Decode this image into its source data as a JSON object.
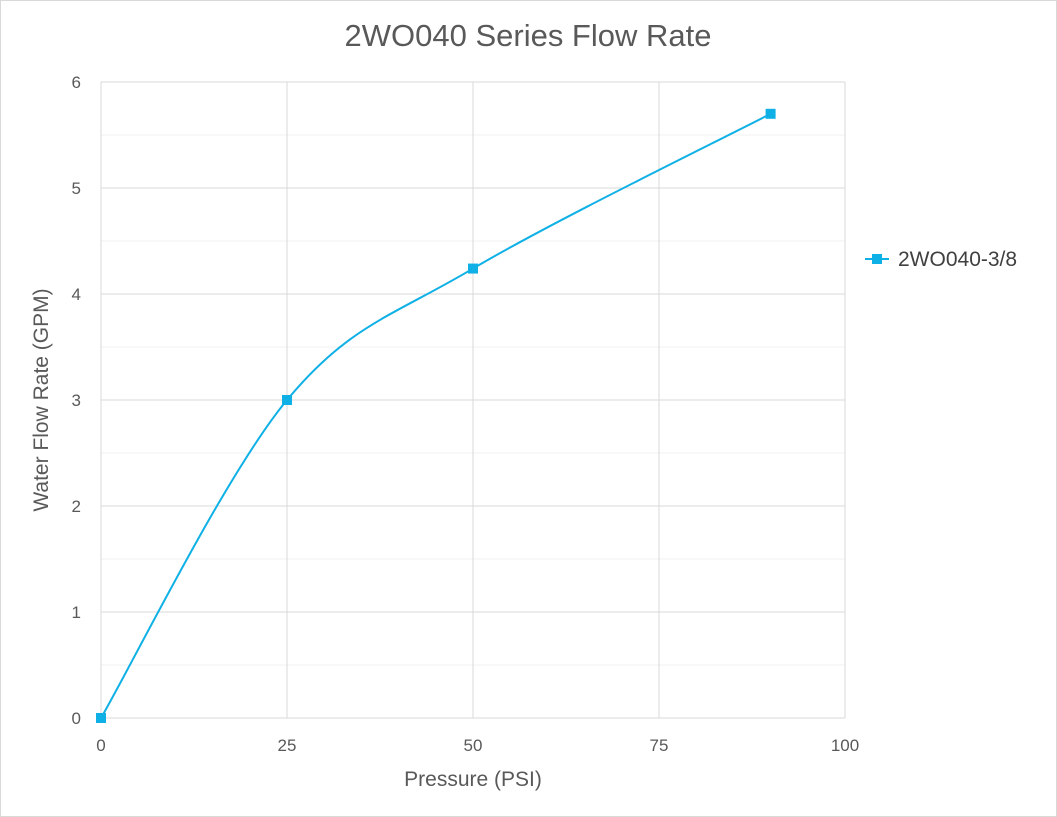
{
  "chart_data": {
    "type": "scatter",
    "title": "2WO040 Series Flow Rate",
    "xlabel": "Pressure (PSI)",
    "ylabel": "Water Flow Rate (GPM)",
    "xlim": [
      0,
      100
    ],
    "ylim": [
      0,
      6
    ],
    "x_ticks": [
      0,
      25,
      50,
      75,
      100
    ],
    "y_ticks": [
      0,
      1,
      2,
      3,
      4,
      5,
      6
    ],
    "y_minor_step": 0.5,
    "grid": true,
    "smooth_line": true,
    "legend_position": "right",
    "series": [
      {
        "name": "2WO040-3/8",
        "color": "#0fb0e6",
        "marker": "square",
        "x": [
          0,
          25,
          50,
          90
        ],
        "y": [
          0,
          3.0,
          4.24,
          5.7
        ]
      }
    ]
  }
}
